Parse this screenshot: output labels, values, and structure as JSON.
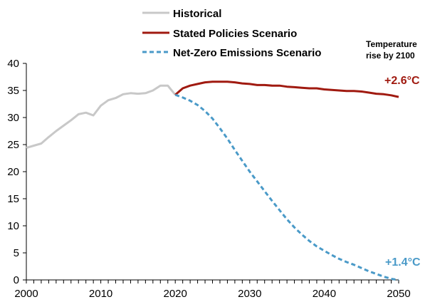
{
  "chart_data": {
    "type": "line",
    "title": "",
    "xlabel": "",
    "ylabel": "",
    "xlim": [
      2000,
      2050
    ],
    "ylim": [
      0,
      40
    ],
    "x_ticks": [
      "2000",
      "2010",
      "2020",
      "2030",
      "2040",
      "2050"
    ],
    "y_ticks": [
      "0",
      "5",
      "10",
      "15",
      "20",
      "25",
      "30",
      "35",
      "40"
    ],
    "grid": false,
    "legend_position": "top",
    "colors": {
      "historical": "#c8c8c8",
      "stated": "#a01a10",
      "netzero": "#4a9ac8"
    },
    "series": [
      {
        "name": "Historical",
        "style": "solid",
        "x": [
          2000,
          2001,
          2002,
          2003,
          2004,
          2005,
          2006,
          2007,
          2008,
          2009,
          2010,
          2011,
          2012,
          2013,
          2014,
          2015,
          2016,
          2017,
          2018,
          2019,
          2020
        ],
        "y": [
          24.4,
          24.8,
          25.2,
          26.4,
          27.5,
          28.5,
          29.5,
          30.6,
          30.9,
          30.4,
          32.2,
          33.2,
          33.6,
          34.3,
          34.5,
          34.4,
          34.5,
          35.0,
          35.9,
          35.9,
          34.2
        ]
      },
      {
        "name": "Stated Policies Scenario",
        "style": "solid",
        "x": [
          2020,
          2021,
          2022,
          2023,
          2024,
          2025,
          2026,
          2027,
          2028,
          2029,
          2030,
          2031,
          2032,
          2033,
          2034,
          2035,
          2036,
          2037,
          2038,
          2039,
          2040,
          2041,
          2042,
          2043,
          2044,
          2045,
          2046,
          2047,
          2048,
          2049,
          2050
        ],
        "y": [
          34.2,
          35.4,
          35.9,
          36.2,
          36.5,
          36.6,
          36.6,
          36.6,
          36.5,
          36.3,
          36.2,
          36.0,
          36.0,
          35.9,
          35.9,
          35.7,
          35.6,
          35.5,
          35.4,
          35.4,
          35.2,
          35.1,
          35.0,
          34.9,
          34.9,
          34.8,
          34.6,
          34.4,
          34.3,
          34.1,
          33.8
        ]
      },
      {
        "name": "Net-Zero Emissions Scenario",
        "style": "dashed",
        "x": [
          2020,
          2021,
          2022,
          2023,
          2024,
          2025,
          2026,
          2027,
          2028,
          2029,
          2030,
          2031,
          2032,
          2033,
          2034,
          2035,
          2036,
          2037,
          2038,
          2039,
          2040,
          2041,
          2042,
          2043,
          2044,
          2045,
          2046,
          2047,
          2048,
          2049,
          2050
        ],
        "y": [
          34.2,
          33.7,
          33.1,
          32.3,
          31.2,
          29.8,
          28.0,
          26.1,
          24.0,
          22.0,
          20.0,
          18.2,
          16.4,
          14.6,
          12.9,
          11.2,
          9.7,
          8.4,
          7.2,
          6.2,
          5.4,
          4.6,
          3.9,
          3.3,
          2.8,
          2.2,
          1.6,
          1.1,
          0.6,
          0.2,
          0.0
        ]
      }
    ],
    "annotations": {
      "heading_line1": "Temperature",
      "heading_line2": "rise by 2100",
      "stated_temp": "+2.6°C",
      "netzero_temp": "+1.4°C"
    }
  }
}
